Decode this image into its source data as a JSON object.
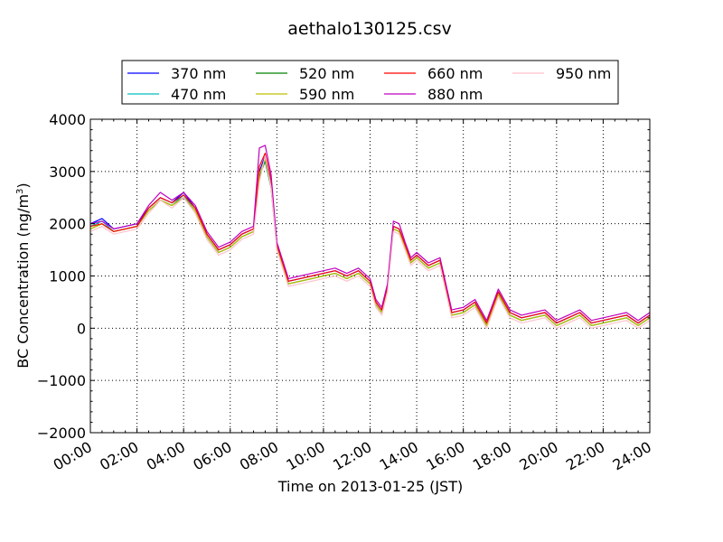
{
  "chart_data": {
    "type": "line",
    "title": "aethalo130125.csv",
    "xlabel": "Time on 2013-01-25 (JST)",
    "ylabel": "BC Concentration (ng/m",
    "ylabel_superscript": "3",
    "ylabel_suffix": ")",
    "x_unit": "hours",
    "xlim": [
      0,
      24
    ],
    "ylim": [
      -2000,
      4000
    ],
    "x_ticks": [
      "00:00",
      "02:00",
      "04:00",
      "06:00",
      "08:00",
      "10:00",
      "12:00",
      "14:00",
      "16:00",
      "18:00",
      "20:00",
      "22:00",
      "24:00"
    ],
    "y_ticks": [
      "4000",
      "3000",
      "2000",
      "1000",
      "0",
      "−1000",
      "−2000"
    ],
    "y_tick_values": [
      4000,
      3000,
      2000,
      1000,
      0,
      -1000,
      -2000
    ],
    "grid": true,
    "legend_position": "top-center",
    "legend_columns": 4,
    "x": [
      0,
      0.5,
      1,
      1.5,
      2,
      2.5,
      3,
      3.5,
      4,
      4.5,
      5,
      5.5,
      6,
      6.5,
      7,
      7.25,
      7.5,
      7.75,
      8,
      8.5,
      9,
      9.5,
      10,
      10.5,
      11,
      11.5,
      12,
      12.25,
      12.5,
      12.75,
      13,
      13.25,
      13.5,
      13.75,
      14,
      14.5,
      15,
      15.5,
      16,
      16.5,
      17,
      17.5,
      18,
      18.5,
      19,
      19.5,
      20,
      20.5,
      21,
      21.5,
      22,
      22.5,
      23,
      23.5,
      24
    ],
    "series": [
      {
        "name": "370 nm",
        "color": "#0000ff",
        "values": [
          2000,
          2100,
          1900,
          1950,
          2000,
          2300,
          2500,
          2400,
          2600,
          2300,
          1800,
          1500,
          1600,
          1800,
          1900,
          3000,
          3300,
          2800,
          1600,
          900,
          950,
          1000,
          1050,
          1100,
          1000,
          1100,
          900,
          500,
          350,
          800,
          1950,
          1900,
          1600,
          1300,
          1400,
          1200,
          1300,
          300,
          350,
          500,
          100,
          700,
          300,
          200,
          250,
          300,
          100,
          200,
          300,
          100,
          150,
          200,
          250,
          100,
          250
        ]
      },
      {
        "name": "470 nm",
        "color": "#00bfbf",
        "values": [
          1950,
          2050,
          1850,
          1900,
          1950,
          2250,
          2450,
          2350,
          2550,
          2250,
          1750,
          1450,
          1550,
          1750,
          1850,
          2950,
          3200,
          2700,
          1550,
          850,
          900,
          950,
          1000,
          1050,
          950,
          1050,
          850,
          450,
          300,
          750,
          1900,
          1850,
          1550,
          1250,
          1350,
          1150,
          1250,
          250,
          300,
          450,
          50,
          650,
          250,
          150,
          200,
          250,
          50,
          150,
          250,
          50,
          100,
          150,
          200,
          50,
          200
        ]
      },
      {
        "name": "520 nm",
        "color": "#008000",
        "values": [
          1900,
          2000,
          1850,
          1900,
          1950,
          2250,
          2450,
          2350,
          2500,
          2250,
          1750,
          1450,
          1550,
          1750,
          1850,
          2900,
          3200,
          2700,
          1550,
          850,
          900,
          950,
          1000,
          1050,
          950,
          1050,
          850,
          450,
          300,
          750,
          1900,
          1850,
          1550,
          1250,
          1350,
          1150,
          1250,
          250,
          300,
          450,
          50,
          650,
          250,
          150,
          200,
          250,
          50,
          150,
          250,
          50,
          100,
          150,
          200,
          50,
          200
        ]
      },
      {
        "name": "590 nm",
        "color": "#bfbf00",
        "values": [
          1900,
          2000,
          1850,
          1900,
          1950,
          2250,
          2450,
          2350,
          2500,
          2250,
          1750,
          1450,
          1550,
          1750,
          1850,
          2950,
          3250,
          2750,
          1550,
          850,
          900,
          950,
          1000,
          1050,
          950,
          1050,
          850,
          450,
          300,
          750,
          1900,
          1850,
          1550,
          1250,
          1350,
          1150,
          1250,
          250,
          300,
          450,
          50,
          650,
          250,
          150,
          200,
          250,
          50,
          150,
          250,
          50,
          100,
          150,
          200,
          50,
          200
        ]
      },
      {
        "name": "660 nm",
        "color": "#ff0000",
        "values": [
          1950,
          2000,
          1850,
          1900,
          1950,
          2300,
          2500,
          2400,
          2550,
          2300,
          1800,
          1500,
          1600,
          1800,
          1900,
          3100,
          3350,
          2850,
          1600,
          900,
          950,
          1000,
          1050,
          1100,
          1000,
          1100,
          900,
          500,
          350,
          800,
          1950,
          1900,
          1600,
          1300,
          1400,
          1200,
          1300,
          300,
          350,
          500,
          100,
          700,
          300,
          200,
          250,
          300,
          100,
          200,
          300,
          100,
          150,
          200,
          250,
          100,
          250
        ]
      },
      {
        "name": "880 nm",
        "color": "#bf00bf",
        "values": [
          2000,
          2050,
          1900,
          1950,
          2000,
          2350,
          2600,
          2450,
          2600,
          2350,
          1850,
          1550,
          1650,
          1850,
          1950,
          3450,
          3500,
          2950,
          1650,
          950,
          1000,
          1050,
          1100,
          1150,
          1050,
          1150,
          950,
          550,
          400,
          850,
          2050,
          2000,
          1650,
          1350,
          1450,
          1250,
          1350,
          350,
          400,
          550,
          150,
          750,
          350,
          250,
          300,
          350,
          150,
          250,
          350,
          150,
          200,
          250,
          300,
          150,
          300
        ]
      },
      {
        "name": "950 nm",
        "color": "#ffc0cb",
        "values": [
          1850,
          1950,
          1800,
          1850,
          1900,
          2200,
          2450,
          2300,
          2500,
          2200,
          1700,
          1400,
          1500,
          1700,
          1800,
          2800,
          3300,
          2700,
          1500,
          800,
          850,
          900,
          950,
          1000,
          900,
          1000,
          800,
          400,
          250,
          700,
          1850,
          1800,
          1500,
          1200,
          1300,
          1100,
          1200,
          200,
          250,
          400,
          0,
          600,
          200,
          100,
          150,
          200,
          0,
          100,
          200,
          0,
          50,
          100,
          150,
          0,
          150
        ]
      }
    ]
  }
}
